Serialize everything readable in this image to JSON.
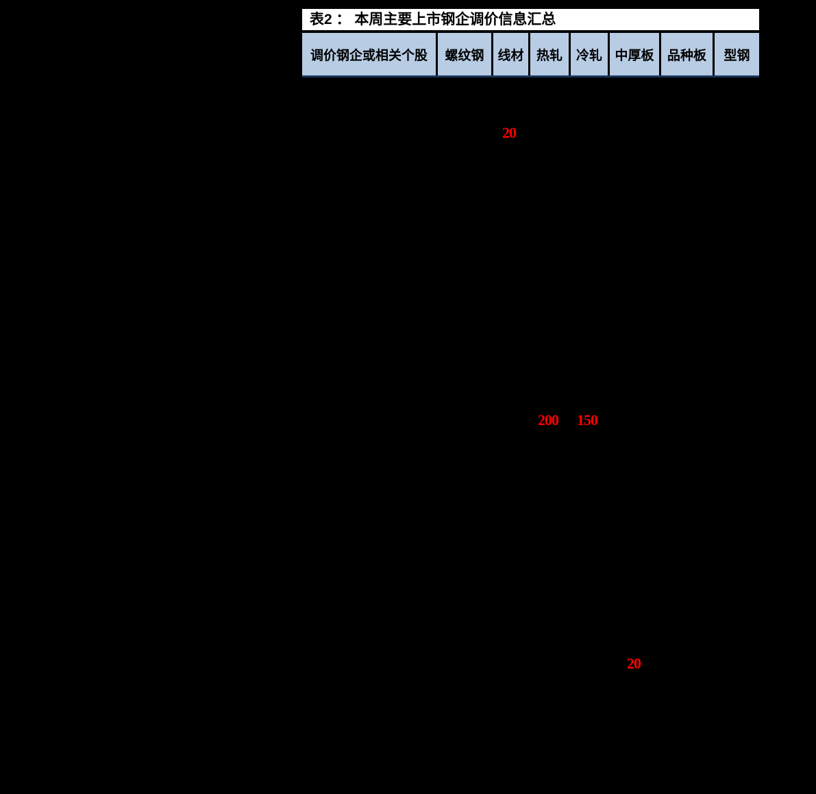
{
  "page": {
    "background": "#000000"
  },
  "table": {
    "title": "表2 ： 本周主要上市钢企调价信息汇总",
    "header_bg": "#b8cce4",
    "value_color": "#ff0000",
    "columns": [
      "调价钢企或相关个股",
      "螺纹钢",
      "线材",
      "热轧",
      "冷轧",
      "中厚板",
      "品种板",
      "型钢"
    ],
    "adjustments": [
      {
        "value": "20",
        "column": "线材"
      },
      {
        "value": "200",
        "column": "热轧"
      },
      {
        "value": "150",
        "column": "冷轧"
      },
      {
        "value": "20",
        "column": "中厚板"
      }
    ]
  }
}
